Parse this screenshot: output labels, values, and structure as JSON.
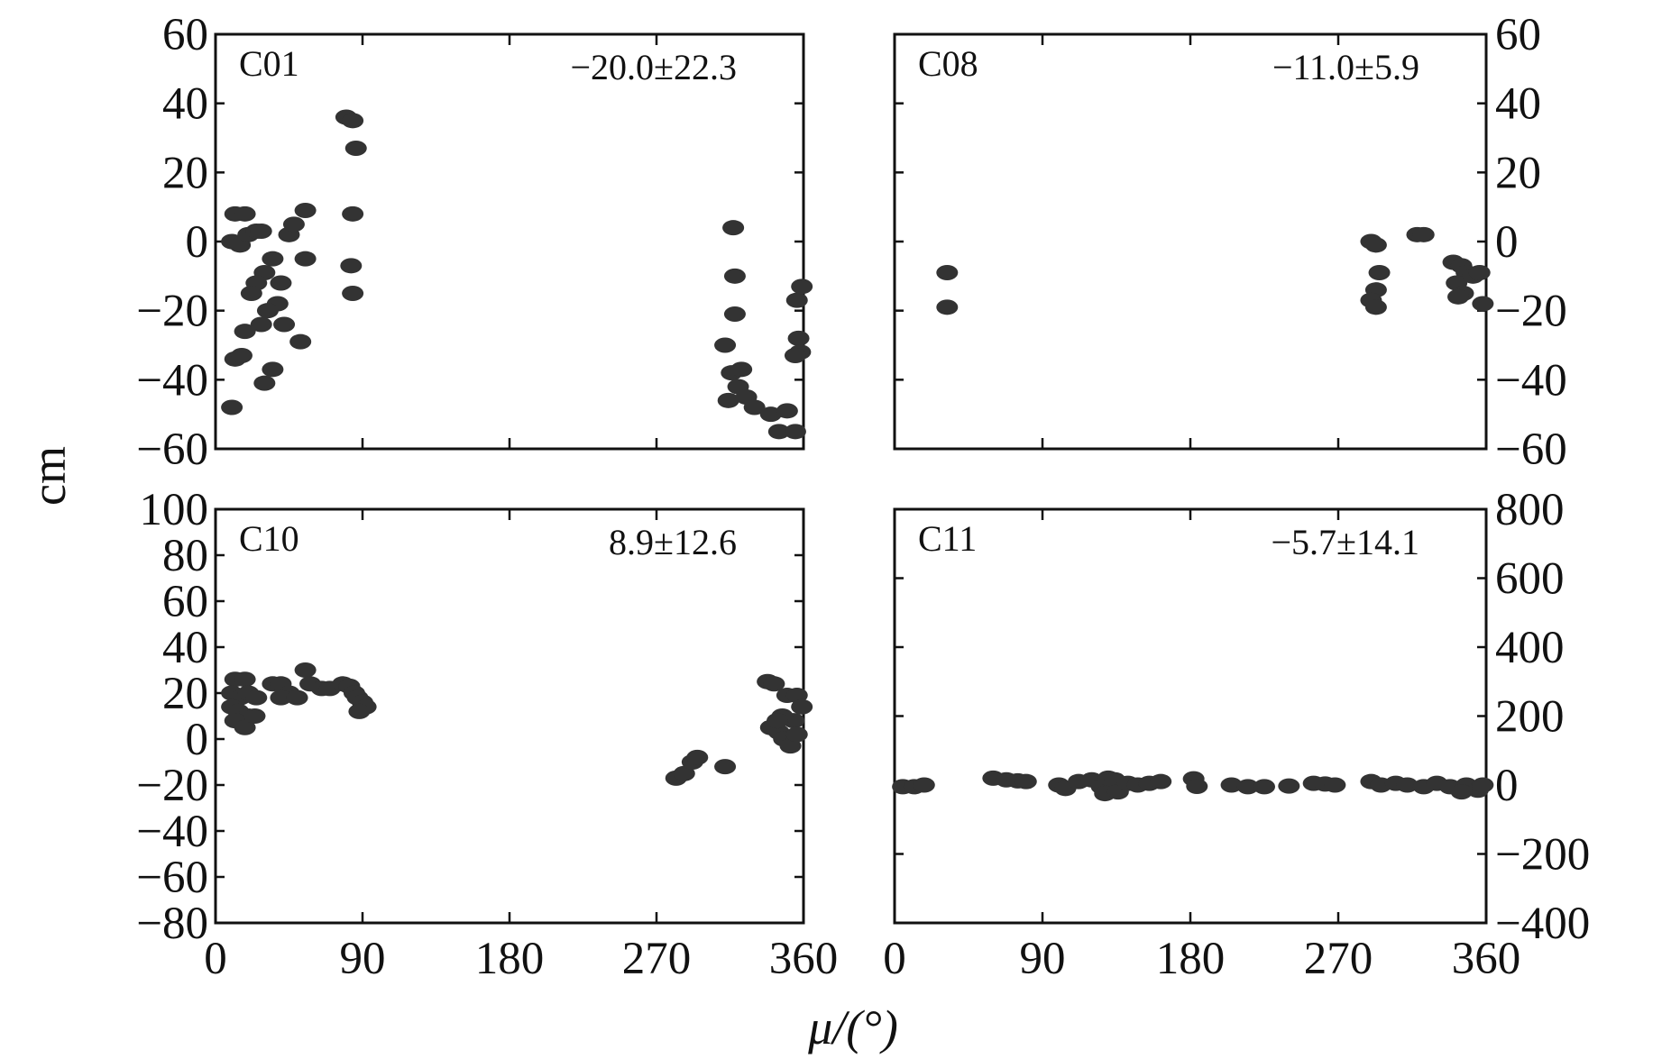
{
  "chart_data": [
    {
      "type": "scatter",
      "panel": "C01",
      "annotation": "−20.0±22.3",
      "xlim": [
        0,
        360
      ],
      "ylim": [
        -60,
        60
      ],
      "x_ticks": [
        0,
        90,
        180,
        270,
        360
      ],
      "y_ticks": [
        -60,
        -40,
        -20,
        0,
        20,
        40,
        60
      ],
      "y_tick_labels": [
        "−60",
        "−40",
        "−20",
        "0",
        "20",
        "40",
        "60"
      ],
      "points": [
        [
          12,
          8
        ],
        [
          18,
          8
        ],
        [
          10,
          0
        ],
        [
          15,
          -1
        ],
        [
          20,
          2
        ],
        [
          25,
          3
        ],
        [
          28,
          3
        ],
        [
          35,
          -5
        ],
        [
          30,
          -9
        ],
        [
          25,
          -12
        ],
        [
          22,
          -15
        ],
        [
          40,
          -12
        ],
        [
          45,
          2
        ],
        [
          48,
          5
        ],
        [
          55,
          9
        ],
        [
          38,
          -18
        ],
        [
          32,
          -20
        ],
        [
          28,
          -24
        ],
        [
          18,
          -26
        ],
        [
          42,
          -24
        ],
        [
          52,
          -29
        ],
        [
          12,
          -34
        ],
        [
          16,
          -33
        ],
        [
          35,
          -37
        ],
        [
          30,
          -41
        ],
        [
          10,
          -48
        ],
        [
          55,
          -5
        ],
        [
          80,
          36
        ],
        [
          84,
          35
        ],
        [
          86,
          27
        ],
        [
          84,
          8
        ],
        [
          83,
          -7
        ],
        [
          84,
          -15
        ],
        [
          317,
          4
        ],
        [
          318,
          -10
        ],
        [
          318,
          -21
        ],
        [
          312,
          -30
        ],
        [
          316,
          -38
        ],
        [
          320,
          -42
        ],
        [
          314,
          -46
        ],
        [
          325,
          -45
        ],
        [
          330,
          -48
        ],
        [
          340,
          -50
        ],
        [
          350,
          -49
        ],
        [
          345,
          -55
        ],
        [
          355,
          -55
        ],
        [
          356,
          -17
        ],
        [
          359,
          -13
        ],
        [
          357,
          -28
        ],
        [
          358,
          -32
        ],
        [
          355,
          -33
        ],
        [
          322,
          -37
        ]
      ]
    },
    {
      "type": "scatter",
      "panel": "C08",
      "annotation": "−11.0±5.9",
      "xlim": [
        0,
        360
      ],
      "ylim": [
        -60,
        60
      ],
      "x_ticks": [
        0,
        90,
        180,
        270,
        360
      ],
      "y_ticks": [
        -60,
        -40,
        -20,
        0,
        20,
        40,
        60
      ],
      "y_tick_labels": [
        "−60",
        "−40",
        "−20",
        "0",
        "20",
        "40",
        "60"
      ],
      "y_axis_side": "right",
      "points": [
        [
          32,
          -9
        ],
        [
          32,
          -19
        ],
        [
          290,
          0
        ],
        [
          293,
          -1
        ],
        [
          295,
          -9
        ],
        [
          293,
          -14
        ],
        [
          290,
          -17
        ],
        [
          293,
          -19
        ],
        [
          318,
          2
        ],
        [
          322,
          2
        ],
        [
          340,
          -6
        ],
        [
          345,
          -7
        ],
        [
          348,
          -9
        ],
        [
          342,
          -12
        ],
        [
          346,
          -15
        ],
        [
          352,
          -10
        ],
        [
          356,
          -9
        ],
        [
          358,
          -18
        ],
        [
          343,
          -16
        ]
      ]
    },
    {
      "type": "scatter",
      "panel": "C10",
      "annotation": "8.9±12.6",
      "xlim": [
        0,
        360
      ],
      "ylim": [
        -80,
        100
      ],
      "x_ticks": [
        0,
        90,
        180,
        270,
        360
      ],
      "x_tick_labels": [
        "0",
        "90",
        "180",
        "270",
        "360"
      ],
      "y_ticks": [
        -80,
        -60,
        -40,
        -20,
        0,
        20,
        40,
        60,
        80,
        100
      ],
      "y_tick_labels": [
        "−80",
        "−60",
        "−40",
        "−20",
        "0",
        "20",
        "40",
        "60",
        "80",
        "100"
      ],
      "points": [
        [
          12,
          26
        ],
        [
          18,
          26
        ],
        [
          10,
          20
        ],
        [
          15,
          18
        ],
        [
          20,
          20
        ],
        [
          25,
          18
        ],
        [
          10,
          14
        ],
        [
          14,
          12
        ],
        [
          20,
          10
        ],
        [
          12,
          8
        ],
        [
          18,
          5
        ],
        [
          24,
          10
        ],
        [
          35,
          24
        ],
        [
          40,
          24
        ],
        [
          45,
          20
        ],
        [
          40,
          18
        ],
        [
          50,
          18
        ],
        [
          55,
          30
        ],
        [
          58,
          24
        ],
        [
          65,
          22
        ],
        [
          70,
          22
        ],
        [
          78,
          24
        ],
        [
          82,
          23
        ],
        [
          85,
          20
        ],
        [
          87,
          18
        ],
        [
          90,
          16
        ],
        [
          92,
          14
        ],
        [
          88,
          12
        ],
        [
          282,
          -17
        ],
        [
          287,
          -15
        ],
        [
          292,
          -10
        ],
        [
          295,
          -8
        ],
        [
          312,
          -12
        ],
        [
          338,
          25
        ],
        [
          342,
          24
        ],
        [
          350,
          19
        ],
        [
          356,
          19
        ],
        [
          340,
          5
        ],
        [
          345,
          3
        ],
        [
          348,
          0
        ],
        [
          352,
          -3
        ],
        [
          354,
          8
        ],
        [
          356,
          2
        ],
        [
          347,
          10
        ],
        [
          359,
          14
        ],
        [
          344,
          8
        ]
      ]
    },
    {
      "type": "scatter",
      "panel": "C11",
      "annotation": "−5.7±14.1",
      "xlim": [
        0,
        360
      ],
      "ylim": [
        -400,
        800
      ],
      "x_ticks": [
        0,
        90,
        180,
        270,
        360
      ],
      "x_tick_labels": [
        "0",
        "90",
        "180",
        "270",
        "360"
      ],
      "y_ticks": [
        -400,
        -200,
        0,
        200,
        400,
        600,
        800
      ],
      "y_tick_labels": [
        "−400",
        "−200",
        "0",
        "200",
        "400",
        "600",
        "800"
      ],
      "y_axis_side": "right",
      "points": [
        [
          5,
          -5
        ],
        [
          12,
          -5
        ],
        [
          18,
          0
        ],
        [
          60,
          20
        ],
        [
          68,
          15
        ],
        [
          75,
          12
        ],
        [
          80,
          10
        ],
        [
          100,
          0
        ],
        [
          104,
          -10
        ],
        [
          112,
          10
        ],
        [
          120,
          15
        ],
        [
          126,
          -5
        ],
        [
          130,
          20
        ],
        [
          134,
          15
        ],
        [
          128,
          -25
        ],
        [
          136,
          -20
        ],
        [
          142,
          5
        ],
        [
          148,
          0
        ],
        [
          155,
          5
        ],
        [
          162,
          10
        ],
        [
          182,
          18
        ],
        [
          184,
          -4
        ],
        [
          205,
          0
        ],
        [
          215,
          -5
        ],
        [
          225,
          -5
        ],
        [
          240,
          -3
        ],
        [
          255,
          5
        ],
        [
          262,
          3
        ],
        [
          268,
          0
        ],
        [
          290,
          10
        ],
        [
          296,
          0
        ],
        [
          305,
          5
        ],
        [
          312,
          0
        ],
        [
          322,
          -5
        ],
        [
          330,
          5
        ],
        [
          338,
          -5
        ],
        [
          348,
          0
        ],
        [
          355,
          -15
        ],
        [
          345,
          -20
        ],
        [
          358,
          0
        ]
      ]
    }
  ],
  "axes": {
    "ylabel": "cm",
    "xlabel": "μ/(°)"
  },
  "colors": {
    "points": "#333333",
    "frame": "#111111"
  }
}
